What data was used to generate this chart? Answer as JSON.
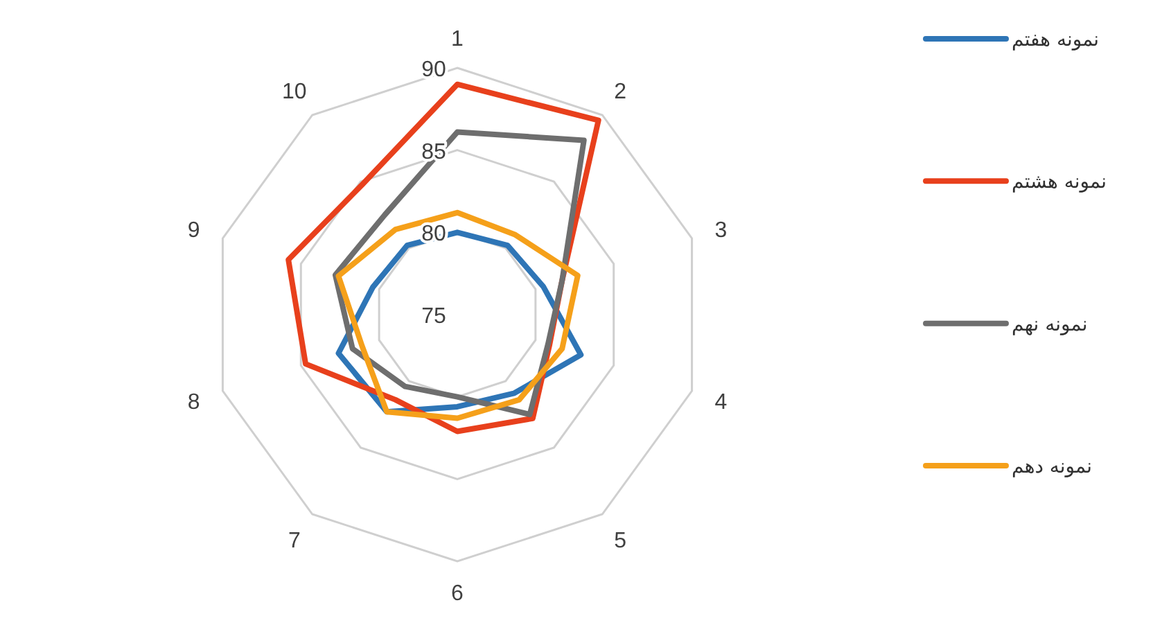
{
  "chart_data": {
    "type": "radar",
    "categories": [
      "1",
      "2",
      "3",
      "4",
      "5",
      "6",
      "7",
      "8",
      "9",
      "10"
    ],
    "series": [
      {
        "name": "نمونه هفتم",
        "color": "#2e75b6",
        "values": [
          80.0,
          80.2,
          80.5,
          82.9,
          80.9,
          80.6,
          82.3,
          82.6,
          80.4,
          80.2
        ]
      },
      {
        "name": "نمونه هشتم",
        "color": "#e8401c",
        "values": [
          89.0,
          89.6,
          81.7,
          80.9,
          82.8,
          82.1,
          81.4,
          84.7,
          85.8,
          84.8
        ]
      },
      {
        "name": "نمونه نهم",
        "color": "#6e6e6e",
        "values": [
          86.1,
          88.1,
          81.7,
          80.8,
          82.5,
          80.0,
          80.4,
          81.7,
          82.8,
          82.5
        ]
      },
      {
        "name": "نمونه دهم",
        "color": "#f5a01a",
        "values": [
          81.2,
          81.0,
          82.7,
          81.7,
          81.4,
          81.3,
          82.3,
          81.1,
          82.6,
          81.4
        ]
      }
    ],
    "ylim": [
      75,
      90
    ],
    "yticks": [
      75,
      80,
      85,
      90
    ],
    "grid": true,
    "legend": "right",
    "marker": "none",
    "line_style": "solid"
  }
}
